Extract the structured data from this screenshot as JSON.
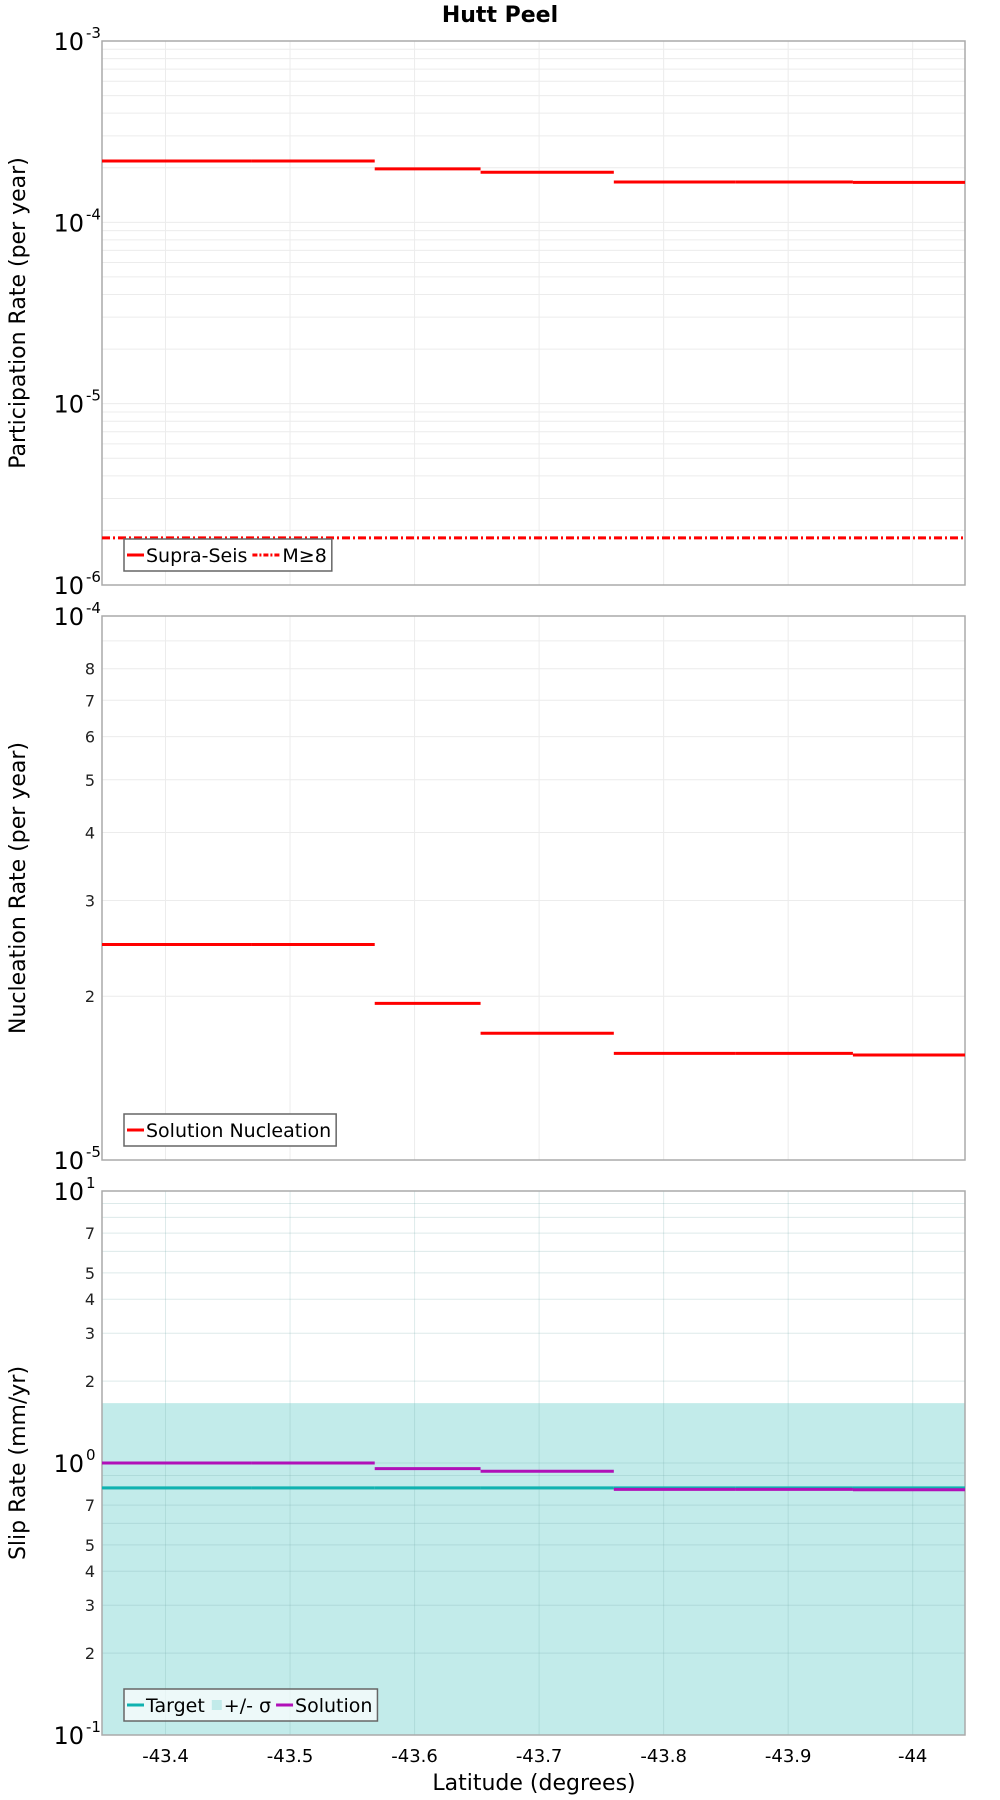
{
  "chart_data": {
    "type": "line",
    "title": "Hutt Peel",
    "xlabel": "Latitude (degrees)",
    "x_ticks": [
      -43.4,
      -43.5,
      -43.6,
      -43.7,
      -43.8,
      -43.9,
      -44
    ],
    "x_tick_labels": [
      "-43.4",
      "-43.5",
      "-43.6",
      "-43.7",
      "-43.8",
      "-43.9",
      "-44"
    ],
    "xlim": [
      -43.349,
      -44.042
    ],
    "segment_edges": [
      -43.349,
      -43.469,
      -43.568,
      -43.653,
      -43.76,
      -43.858,
      -43.952,
      -44.042
    ],
    "panels": [
      {
        "id": "participation",
        "ylabel": "Participation Rate (per year)",
        "yscale": "log",
        "ylim": [
          1e-06,
          0.001
        ],
        "major_tick_labels": [
          {
            "base": "10",
            "exp": "-3",
            "value": 0.001
          },
          {
            "base": "10",
            "exp": "-4",
            "value": 0.0001
          },
          {
            "base": "10",
            "exp": "-5",
            "value": 1e-05
          },
          {
            "base": "10",
            "exp": "-6",
            "value": 1e-06
          }
        ],
        "minor_tick_labels": [],
        "series": [
          {
            "name": "Supra-Seis",
            "style": "solid",
            "color": "#ff0000",
            "values": [
              0.000218,
              0.000218,
              0.000197,
              0.000189,
              0.000167,
              0.000167,
              0.000166
            ]
          },
          {
            "name": "M≥8",
            "style": "dashdot",
            "color": "#ff0000",
            "values": [
              1.82e-06,
              1.82e-06,
              1.82e-06,
              1.82e-06,
              1.82e-06,
              1.82e-06,
              1.82e-06
            ]
          }
        ],
        "legend": [
          {
            "label": "Supra-Seis",
            "style": "solid",
            "color": "#ff0000"
          },
          {
            "label": "M≥8",
            "style": "dashdot",
            "color": "#ff0000"
          }
        ]
      },
      {
        "id": "nucleation",
        "ylabel": "Nucleation Rate (per year)",
        "yscale": "log",
        "ylim": [
          1e-05,
          0.0001
        ],
        "major_tick_labels": [
          {
            "base": "10",
            "exp": "-4",
            "value": 0.0001
          },
          {
            "base": "10",
            "exp": "-5",
            "value": 1e-05
          }
        ],
        "minor_tick_labels": [
          {
            "label": "8",
            "value": 8e-05
          },
          {
            "label": "7",
            "value": 7e-05
          },
          {
            "label": "6",
            "value": 6e-05
          },
          {
            "label": "5",
            "value": 5e-05
          },
          {
            "label": "4",
            "value": 4e-05
          },
          {
            "label": "3",
            "value": 3e-05
          },
          {
            "label": "2",
            "value": 2e-05
          }
        ],
        "series": [
          {
            "name": "Solution Nucleation",
            "style": "solid",
            "color": "#ff0000",
            "values": [
              2.49e-05,
              2.49e-05,
              1.94e-05,
              1.71e-05,
              1.57e-05,
              1.57e-05,
              1.56e-05
            ]
          }
        ],
        "legend": [
          {
            "label": "Solution Nucleation",
            "style": "solid",
            "color": "#ff0000"
          }
        ]
      },
      {
        "id": "slip-rate",
        "ylabel": "Slip Rate (mm/yr)",
        "yscale": "log",
        "ylim": [
          0.1,
          10
        ],
        "major_tick_labels": [
          {
            "base": "10",
            "exp": "1",
            "value": 10
          },
          {
            "base": "10",
            "exp": "0",
            "value": 1
          },
          {
            "base": "10",
            "exp": "-1",
            "value": 0.1
          }
        ],
        "minor_tick_labels": [
          {
            "label": "7",
            "value": 7
          },
          {
            "label": "5",
            "value": 5
          },
          {
            "label": "4",
            "value": 4
          },
          {
            "label": "3",
            "value": 3
          },
          {
            "label": "2",
            "value": 2
          },
          {
            "label": "7",
            "value": 0.7
          },
          {
            "label": "5",
            "value": 0.5
          },
          {
            "label": "4",
            "value": 0.4
          },
          {
            "label": "3",
            "value": 0.3
          },
          {
            "label": "2",
            "value": 0.2
          }
        ],
        "band": {
          "name": "+/- σ",
          "lower": 0.1,
          "upper": 1.66,
          "color": "#c2ebea"
        },
        "series": [
          {
            "name": "Target",
            "style": "solid",
            "color": "#10b2b0",
            "values": [
              0.81,
              0.81,
              0.81,
              0.81,
              0.81,
              0.81,
              0.81
            ]
          },
          {
            "name": "Solution",
            "style": "solid",
            "color": "#b010b8",
            "values": [
              1.0,
              1.0,
              0.953,
              0.933,
              0.8,
              0.8,
              0.797
            ]
          }
        ],
        "legend": [
          {
            "label": "Target",
            "style": "solid",
            "color": "#10b2b0"
          },
          {
            "label": "+/- σ",
            "style": "patch",
            "color": "#c2ebea"
          },
          {
            "label": "Solution",
            "style": "solid",
            "color": "#b010b8"
          }
        ]
      }
    ]
  }
}
